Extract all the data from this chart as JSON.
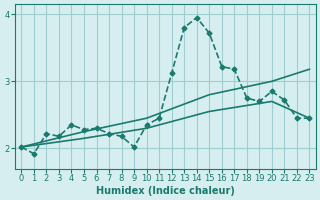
{
  "xlabel": "Humidex (Indice chaleur)",
  "ylabel": "",
  "xlim": [
    -0.5,
    23.5
  ],
  "ylim": [
    1.7,
    4.15
  ],
  "yticks": [
    2,
    3,
    4
  ],
  "xticks": [
    0,
    1,
    2,
    3,
    4,
    5,
    6,
    7,
    8,
    9,
    10,
    11,
    12,
    13,
    14,
    15,
    16,
    17,
    18,
    19,
    20,
    21,
    22,
    23
  ],
  "bg_color": "#d6eef0",
  "grid_color": "#a0cdd0",
  "line_color": "#1a7a6e",
  "line1_x": [
    0,
    1,
    2,
    3,
    4,
    5,
    6,
    7,
    8,
    9,
    10,
    11,
    12,
    13,
    14,
    15,
    16,
    17,
    18,
    19,
    20,
    21,
    22,
    23
  ],
  "line1_y": [
    2.02,
    1.92,
    2.22,
    2.18,
    2.35,
    2.28,
    2.3,
    2.22,
    2.18,
    2.02,
    2.35,
    2.45,
    3.12,
    3.8,
    3.95,
    3.72,
    3.22,
    3.18,
    2.75,
    2.7,
    2.85,
    2.72,
    2.45,
    2.45
  ],
  "line2_x": [
    0,
    5,
    10,
    15,
    20,
    23
  ],
  "line2_y": [
    2.02,
    2.25,
    2.45,
    2.8,
    3.0,
    3.18
  ],
  "line3_x": [
    0,
    5,
    10,
    15,
    20,
    23
  ],
  "line3_y": [
    2.02,
    2.15,
    2.3,
    2.55,
    2.7,
    2.45
  ],
  "line_width": 1.2,
  "marker": "D",
  "marker_size": 2.5
}
